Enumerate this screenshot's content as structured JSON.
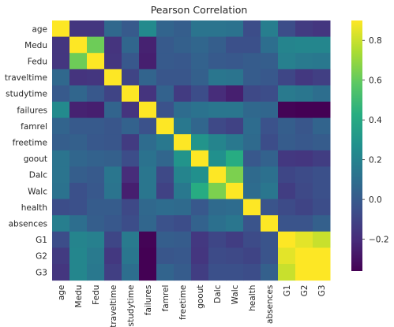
{
  "chart_data": {
    "type": "heatmap",
    "title": "Pearson Correlation",
    "xlabel": "",
    "ylabel": "",
    "row_labels": [
      "age",
      "Medu",
      "Fedu",
      "traveltime",
      "studytime",
      "failures",
      "famrel",
      "freetime",
      "goout",
      "Dalc",
      "Walc",
      "health",
      "absences",
      "G1",
      "G2",
      "G3"
    ],
    "col_labels": [
      "age",
      "Medu",
      "Fedu",
      "traveltime",
      "studytime",
      "failures",
      "famrel",
      "freetime",
      "goout",
      "Dalc",
      "Walc",
      "health",
      "absences",
      "G1",
      "G2",
      "G3"
    ],
    "values": [
      [
        1.0,
        -0.16,
        -0.16,
        0.07,
        0.0,
        0.24,
        0.05,
        0.02,
        0.13,
        0.13,
        0.12,
        -0.06,
        0.18,
        -0.06,
        -0.14,
        -0.16
      ],
      [
        -0.16,
        1.0,
        0.62,
        -0.17,
        0.06,
        -0.24,
        -0.0,
        0.03,
        0.06,
        0.02,
        -0.05,
        -0.05,
        0.1,
        0.21,
        0.22,
        0.22
      ],
      [
        -0.16,
        0.62,
        1.0,
        -0.16,
        -0.01,
        -0.25,
        -0.0,
        -0.01,
        0.04,
        0.0,
        -0.01,
        0.01,
        0.02,
        0.19,
        0.16,
        0.15
      ],
      [
        0.07,
        -0.17,
        -0.16,
        1.0,
        -0.1,
        0.05,
        -0.02,
        -0.02,
        0.03,
        0.14,
        0.13,
        0.01,
        -0.01,
        -0.09,
        -0.15,
        -0.12
      ],
      [
        0.0,
        0.06,
        -0.01,
        -0.1,
        1.0,
        -0.17,
        0.04,
        -0.14,
        -0.06,
        -0.2,
        -0.25,
        -0.08,
        -0.06,
        0.16,
        0.14,
        0.1
      ],
      [
        0.24,
        -0.24,
        -0.25,
        0.05,
        -0.17,
        1.0,
        -0.04,
        0.09,
        0.12,
        0.14,
        0.14,
        0.07,
        0.06,
        -0.35,
        -0.36,
        -0.36
      ],
      [
        0.05,
        -0.0,
        -0.0,
        -0.02,
        0.04,
        -0.04,
        1.0,
        0.15,
        0.06,
        -0.08,
        -0.11,
        0.09,
        -0.04,
        0.02,
        -0.02,
        0.05
      ],
      [
        0.02,
        0.03,
        -0.01,
        -0.02,
        -0.14,
        0.09,
        0.15,
        1.0,
        0.29,
        0.21,
        0.15,
        0.08,
        -0.06,
        0.01,
        -0.01,
        0.01
      ],
      [
        0.13,
        0.06,
        0.04,
        0.03,
        -0.06,
        0.12,
        0.06,
        0.29,
        1.0,
        0.27,
        0.42,
        -0.01,
        0.04,
        -0.15,
        -0.16,
        -0.13
      ],
      [
        0.13,
        0.02,
        0.0,
        0.14,
        -0.2,
        0.14,
        -0.08,
        0.21,
        0.27,
        1.0,
        0.65,
        0.08,
        0.11,
        -0.09,
        -0.07,
        -0.05
      ],
      [
        0.12,
        -0.05,
        -0.01,
        0.13,
        -0.25,
        0.14,
        -0.11,
        0.15,
        0.42,
        0.65,
        1.0,
        0.09,
        0.14,
        -0.13,
        -0.08,
        -0.05
      ],
      [
        -0.06,
        -0.05,
        0.01,
        0.01,
        -0.08,
        0.07,
        0.09,
        0.08,
        -0.01,
        0.08,
        0.09,
        1.0,
        -0.03,
        -0.07,
        -0.1,
        -0.06
      ],
      [
        0.18,
        0.1,
        0.02,
        -0.01,
        -0.06,
        0.06,
        -0.04,
        -0.06,
        0.04,
        0.11,
        0.14,
        -0.03,
        1.0,
        -0.03,
        -0.03,
        0.03
      ],
      [
        -0.06,
        0.21,
        0.19,
        -0.09,
        0.16,
        -0.35,
        0.02,
        0.01,
        -0.15,
        -0.09,
        -0.13,
        -0.07,
        -0.03,
        1.0,
        0.85,
        0.8
      ],
      [
        -0.14,
        0.22,
        0.16,
        -0.15,
        0.14,
        -0.36,
        -0.02,
        -0.01,
        -0.16,
        -0.07,
        -0.08,
        -0.1,
        -0.03,
        0.85,
        1.0,
        0.9
      ],
      [
        -0.16,
        0.22,
        0.15,
        -0.12,
        0.1,
        -0.36,
        0.05,
        0.01,
        -0.13,
        -0.05,
        -0.05,
        -0.06,
        0.03,
        0.8,
        0.9,
        1.0
      ]
    ],
    "colormap": "viridis",
    "vmin": -0.36,
    "vmax": 0.9,
    "colorbar_ticks": [
      0.8,
      0.6,
      0.4,
      0.2,
      0.0,
      -0.2
    ],
    "colorbar_tick_labels": [
      "0.8",
      "0.6",
      "0.4",
      "0.2",
      "0.0",
      "−0.2"
    ]
  }
}
